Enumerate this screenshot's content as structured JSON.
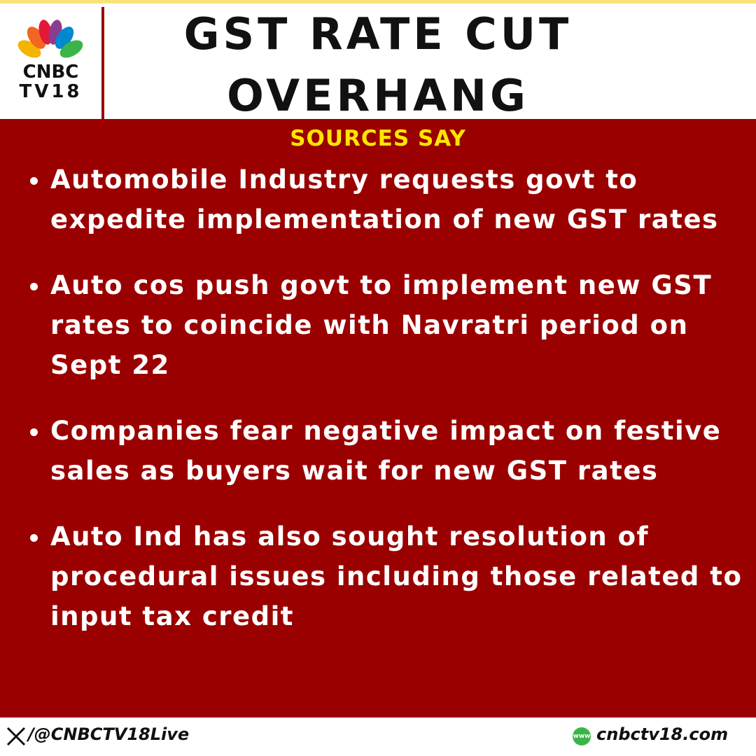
{
  "header": {
    "logo_line1": "CNBC",
    "logo_line2": "TV18",
    "title_line1": "GST RATE CUT",
    "title_line2": "OVERHANG"
  },
  "body": {
    "subtitle": "SOURCES SAY",
    "bullets": [
      "Automobile Industry requests govt to expedite implementation of new GST rates",
      "Auto cos push govt to implement new GST rates to coincide with Navratri period on Sept 22",
      "Companies fear negative impact on festive sales as buyers wait for new GST rates",
      "Auto Ind has also sought resolution of procedural issues including those related to input tax credit"
    ]
  },
  "footer": {
    "handle": "/@CNBCTV18Live",
    "www": "www",
    "site": "cnbctv18.com"
  }
}
